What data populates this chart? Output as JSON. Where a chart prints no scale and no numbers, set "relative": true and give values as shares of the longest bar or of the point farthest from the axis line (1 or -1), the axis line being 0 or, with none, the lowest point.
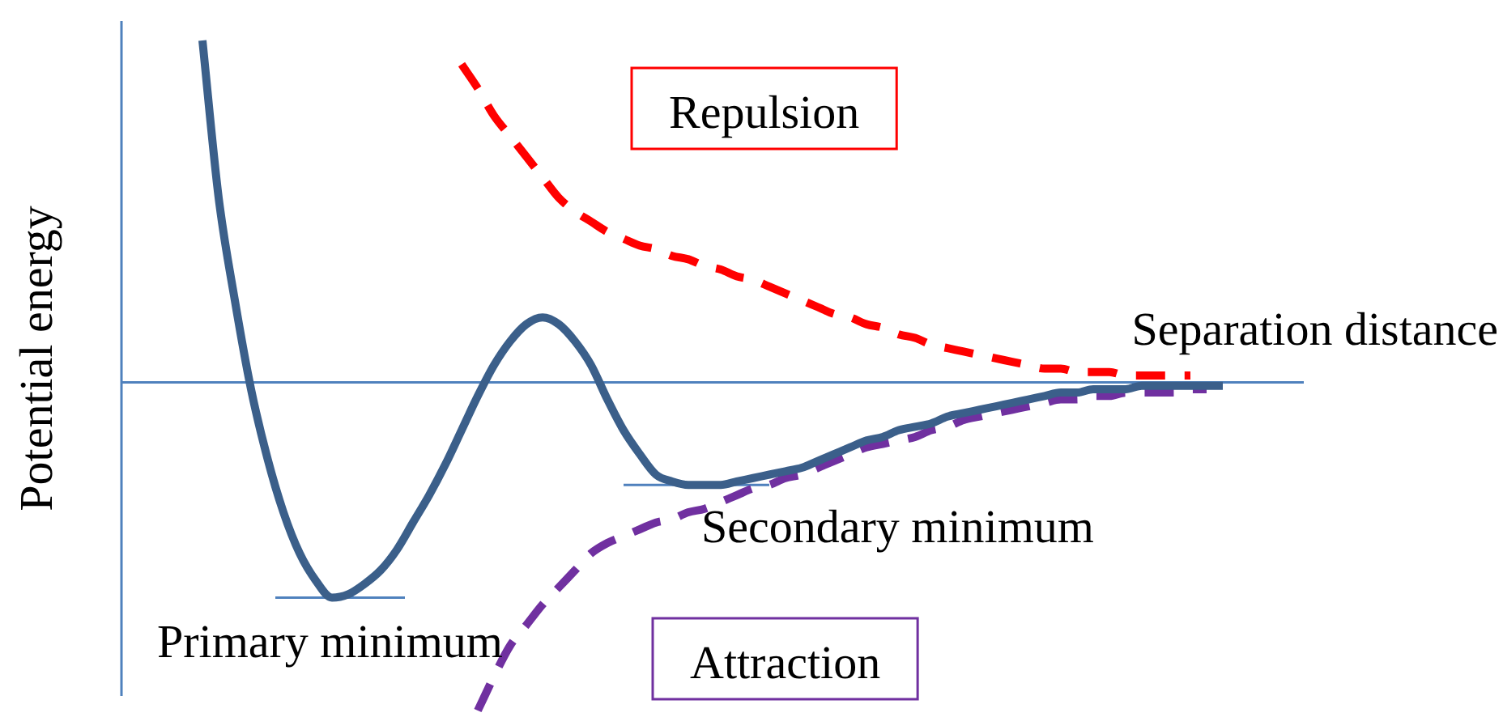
{
  "chart_data": {
    "type": "line",
    "relative": true,
    "xlabel": "Separation distance",
    "ylabel": "Potential energy",
    "marker": "none",
    "categories": [
      null,
      null,
      null,
      null,
      null,
      null,
      null,
      null,
      null,
      null,
      null,
      null,
      null,
      null,
      null,
      null,
      null,
      null,
      null,
      null,
      null,
      null,
      null,
      null,
      null,
      null,
      null,
      null,
      null,
      null,
      null,
      null,
      null,
      null,
      null,
      null,
      null,
      null,
      null,
      null,
      null,
      null,
      null,
      null,
      null,
      null,
      null,
      null,
      null,
      null,
      null,
      null,
      null,
      null,
      null,
      null,
      null,
      null,
      null,
      null,
      null,
      null,
      null,
      null,
      null,
      null,
      null,
      null,
      null,
      null,
      null,
      null,
      null,
      null
    ],
    "series": [
      {
        "color": "#3b5f8a",
        "line_style": "solid",
        "values": [
          null,
          null,
          null,
          null,
          null,
          1.0,
          0.54,
          0.24,
          -0.02,
          -0.22,
          -0.38,
          -0.5,
          -0.58,
          -0.63,
          -0.62,
          -0.59,
          -0.55,
          -0.49,
          -0.41,
          -0.33,
          -0.24,
          -0.14,
          -0.04,
          0.05,
          0.12,
          0.17,
          0.19,
          0.17,
          0.12,
          0.05,
          -0.05,
          -0.14,
          -0.21,
          -0.27,
          -0.29,
          -0.3,
          -0.3,
          -0.3,
          -0.29,
          -0.28,
          -0.27,
          -0.26,
          -0.25,
          -0.23,
          -0.21,
          -0.19,
          -0.17,
          -0.16,
          -0.14,
          -0.13,
          -0.12,
          -0.1,
          -0.09,
          -0.08,
          -0.07,
          -0.06,
          -0.05,
          -0.04,
          -0.03,
          -0.03,
          -0.02,
          -0.02,
          -0.02,
          -0.01,
          -0.01,
          -0.01,
          -0.01,
          -0.01,
          -0.01,
          null,
          null,
          null,
          null,
          null
        ]
      },
      {
        "name": "Repulsion",
        "color": "#ff0000",
        "line_style": "dashed",
        "values": [
          null,
          null,
          null,
          null,
          null,
          null,
          null,
          null,
          null,
          null,
          null,
          null,
          null,
          null,
          null,
          null,
          null,
          null,
          null,
          null,
          null,
          0.93,
          0.86,
          0.78,
          0.72,
          0.66,
          0.6,
          0.54,
          0.5,
          0.47,
          0.44,
          0.42,
          0.4,
          0.39,
          0.37,
          0.36,
          0.34,
          0.33,
          0.31,
          0.3,
          0.28,
          0.26,
          0.24,
          0.22,
          0.2,
          0.19,
          0.17,
          0.16,
          0.14,
          0.13,
          0.11,
          0.1,
          0.09,
          0.08,
          0.07,
          0.06,
          0.05,
          0.04,
          0.04,
          0.03,
          0.03,
          0.03,
          0.02,
          0.02,
          0.02,
          0.02,
          0.02,
          null,
          null,
          null,
          null,
          null,
          null,
          null
        ]
      },
      {
        "name": "Attraction",
        "color": "#7030a0",
        "line_style": "dashed",
        "values": [
          null,
          null,
          null,
          null,
          null,
          null,
          null,
          null,
          null,
          null,
          null,
          null,
          null,
          null,
          null,
          null,
          null,
          null,
          null,
          null,
          null,
          null,
          -0.96,
          -0.86,
          -0.77,
          -0.71,
          -0.65,
          -0.6,
          -0.55,
          -0.5,
          -0.47,
          -0.45,
          -0.43,
          -0.41,
          -0.4,
          -0.38,
          -0.37,
          -0.35,
          -0.33,
          -0.31,
          -0.3,
          -0.28,
          -0.27,
          -0.25,
          -0.23,
          -0.21,
          -0.19,
          -0.18,
          -0.17,
          -0.16,
          -0.14,
          -0.13,
          -0.11,
          -0.1,
          -0.09,
          -0.08,
          -0.07,
          -0.06,
          -0.05,
          -0.05,
          -0.04,
          -0.04,
          -0.03,
          -0.03,
          -0.03,
          -0.03,
          -0.02,
          -0.02,
          null,
          null,
          null,
          null,
          null,
          null
        ]
      }
    ],
    "ref_lines": [
      {
        "axis": "y",
        "value": 0,
        "color": "#4f81bd"
      }
    ],
    "annotations": [
      "Primary minimum",
      "Secondary minimum"
    ]
  }
}
